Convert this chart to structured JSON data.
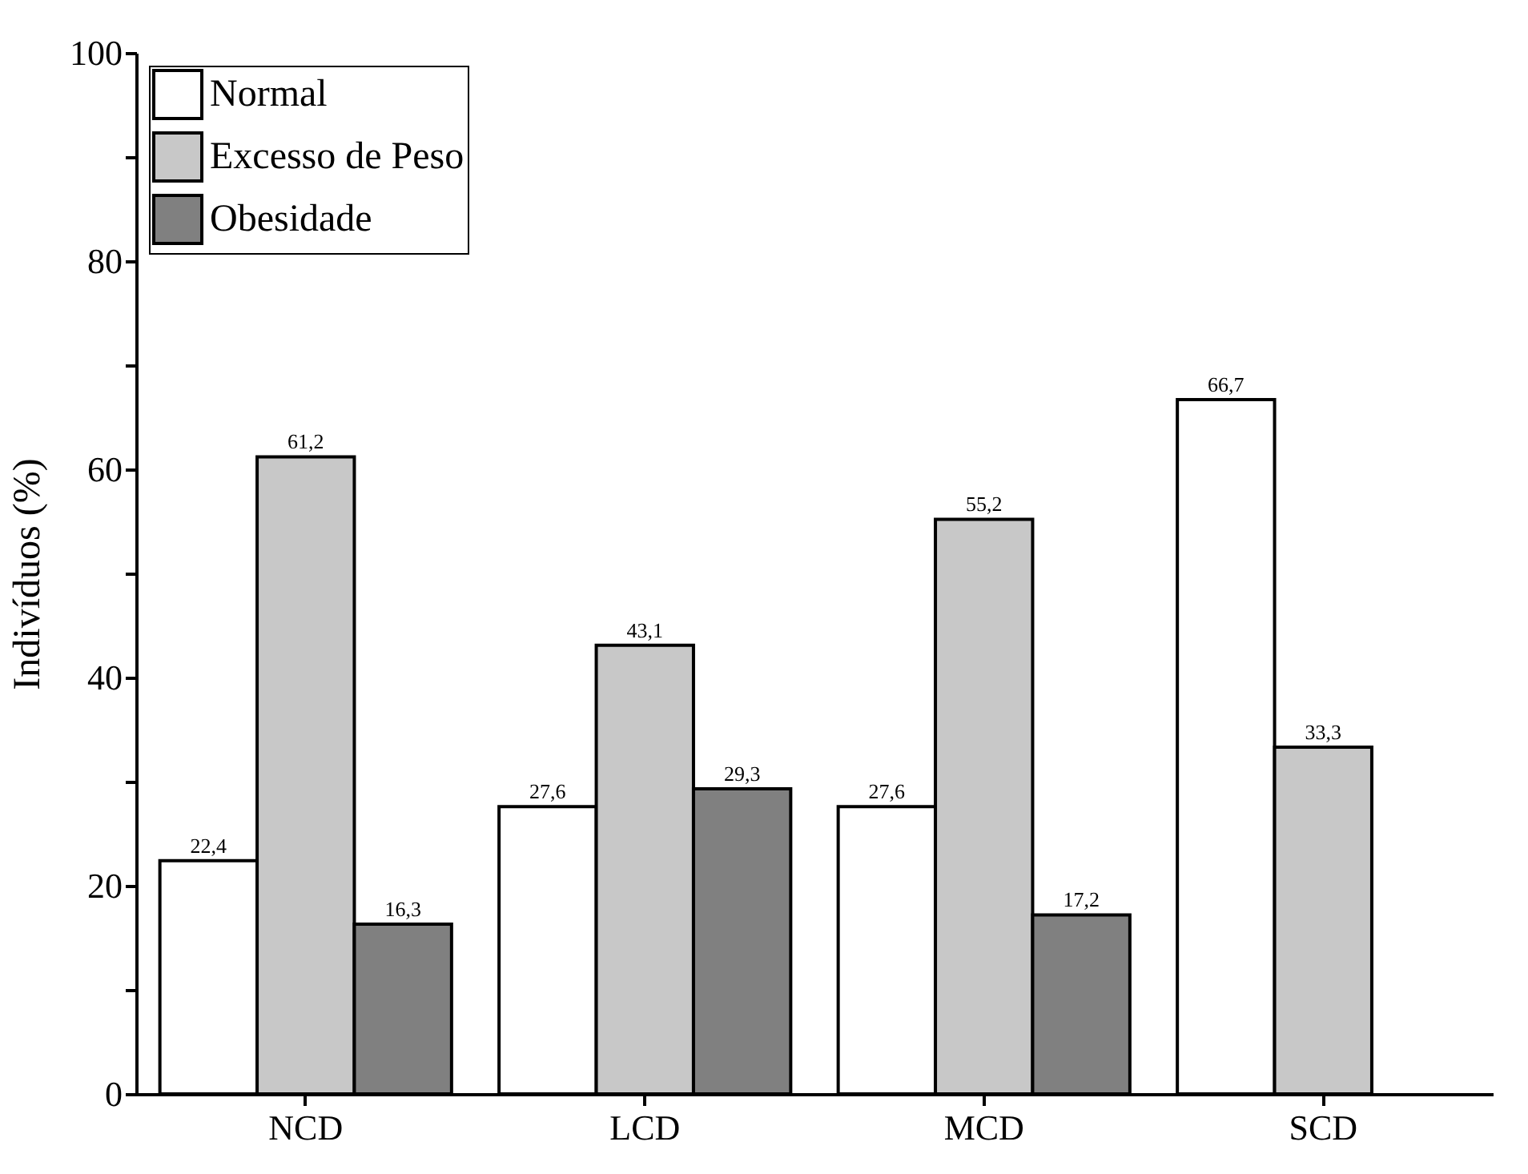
{
  "chart_data": {
    "type": "bar",
    "ylabel": "Indivíduos (%)",
    "categories": [
      "NCD",
      "LCD",
      "MCD",
      "SCD"
    ],
    "series": [
      {
        "name": "Normal",
        "color": "#ffffff",
        "values": [
          22.4,
          27.6,
          27.6,
          66.7
        ],
        "value_labels": [
          "22,4",
          "27,6",
          "27,6",
          "66,7"
        ]
      },
      {
        "name": "Excesso de Peso",
        "color": "#c8c8c8",
        "values": [
          61.2,
          43.1,
          55.2,
          33.3
        ],
        "value_labels": [
          "61,2",
          "43,1",
          "55,2",
          "33,3"
        ]
      },
      {
        "name": "Obesidade",
        "color": "#808080",
        "values": [
          16.3,
          29.3,
          17.2,
          null
        ],
        "value_labels": [
          "16,3",
          "29,3",
          "17,2",
          null
        ]
      }
    ],
    "ylim": [
      0,
      100
    ],
    "yticks": [
      0,
      {
        "value": 10,
        "label": null
      },
      20,
      {
        "value": 30,
        "label": null
      },
      40,
      {
        "value": 50,
        "label": null
      },
      60,
      {
        "value": 70,
        "label": null
      },
      80,
      {
        "value": 90,
        "label": null
      },
      100
    ],
    "grid": false,
    "legend": "top left"
  }
}
